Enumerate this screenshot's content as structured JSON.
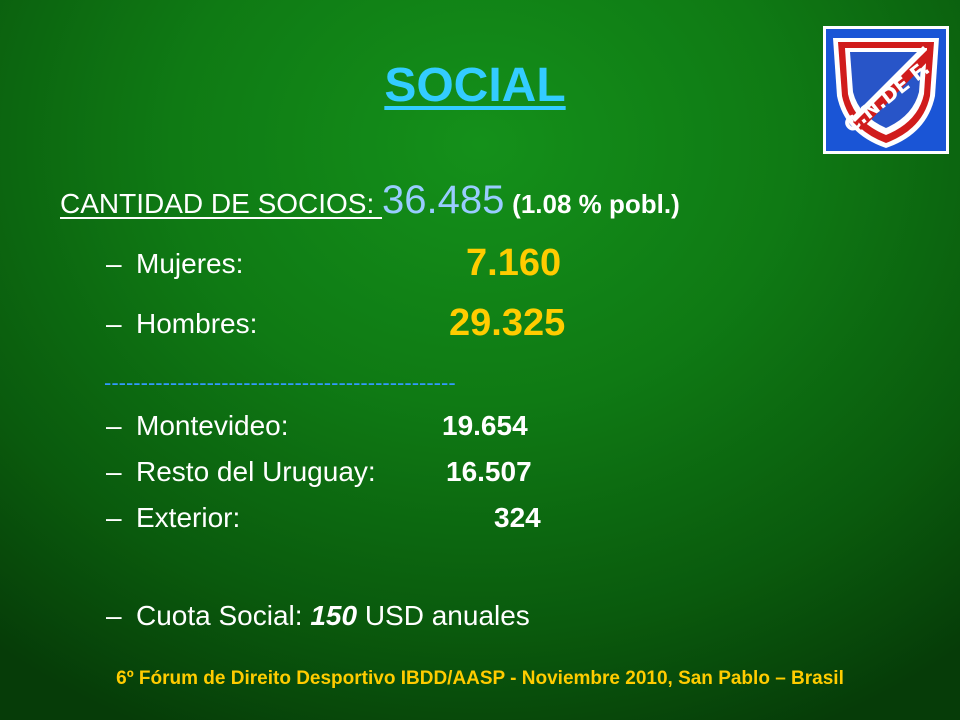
{
  "slide": {
    "title": "SOCIAL",
    "socios_label": "CANTIDAD DE SOCIOS: ",
    "socios_total": "36.485",
    "socios_pct": "(1.08 % pobl.)",
    "items": [
      {
        "dash": "–",
        "label": "Mujeres:",
        "value": "7.160"
      },
      {
        "dash": "–",
        "label": "Hombres:",
        "value": "29.325"
      },
      {
        "dash": "–",
        "label": "Montevideo:",
        "value": "19.654"
      },
      {
        "dash": "–",
        "label": "Resto del Uruguay:",
        "value": "16.507"
      },
      {
        "dash": "–",
        "label": "Exterior:",
        "value": "324"
      }
    ],
    "separator": "------------------------------------------------",
    "cuota": {
      "dash": "–",
      "label": "Cuota Social: ",
      "value": "150",
      "unit": " USD anuales"
    },
    "footer": "6º Fórum de Direito Desportivo IBDD/AASP - Noviembre 2010, San Pablo – Brasil",
    "logo_text": "C.N.DE F."
  },
  "colors": {
    "title": "#33ccff",
    "accent_yellow": "#ffcc00",
    "total": "#99ccff",
    "background": "#0f7a14"
  }
}
